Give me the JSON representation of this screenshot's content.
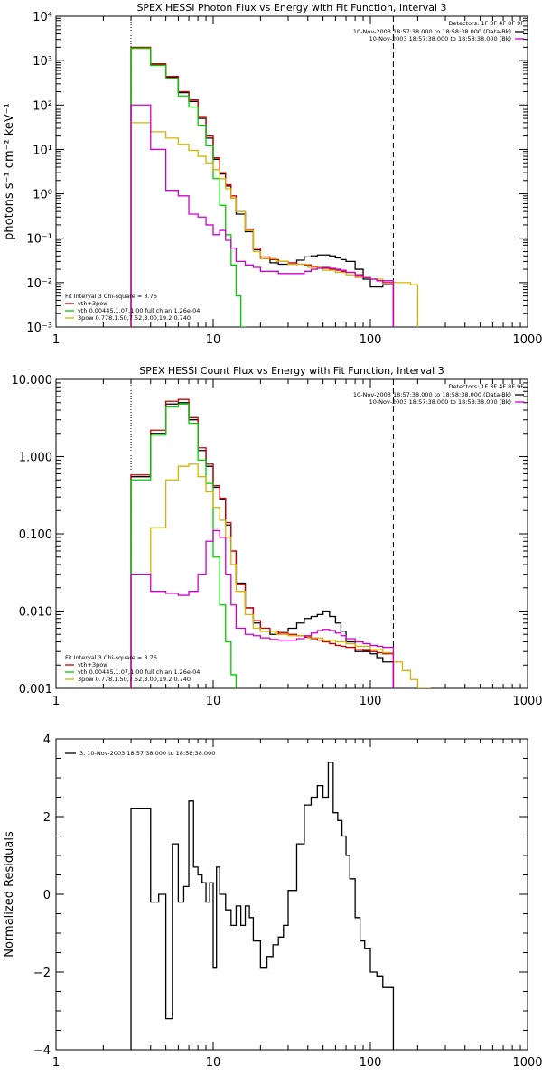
{
  "chart_data": [
    {
      "type": "line",
      "title": "SPEX HESSI Photon Flux vs Energy with Fit Function, Interval 3",
      "xlabel": "",
      "ylabel": "photons s⁻¹ cm⁻² keV⁻¹",
      "xscale": "log",
      "yscale": "log",
      "xlim": [
        1,
        1000
      ],
      "ylim": [
        0.001,
        10000
      ],
      "x_ticks": [
        "1",
        "10",
        "100",
        "1000"
      ],
      "y_ticks": [
        "10⁻³",
        "10⁻²",
        "10⁻¹",
        "10⁰",
        "10¹",
        "10²",
        "10³",
        "10⁴"
      ],
      "grid": false,
      "vlines": [
        {
          "x": 3.0,
          "style": "dotted"
        },
        {
          "x": 140,
          "style": "dashed"
        }
      ],
      "legend_top_right": {
        "header": "Detectors: 1F 3F 4F 8F 9F",
        "entries": [
          {
            "label": "10-Nov-2003 18:57:38.000 to 18:58:38.000 (Data-Bk)",
            "color": "#000000"
          },
          {
            "label": "10-Nov-2003 18:57:38.000 to 18:58:38.000 (Bk)",
            "color": "#cc00cc"
          }
        ]
      },
      "legend_bottom_left": {
        "header": "Fit Interval 3   Chi-square = 3.76",
        "entries": [
          {
            "label": "vth+3pow",
            "color": "#cc0000"
          },
          {
            "label": "vth 0.00445,1.07,1.00  full chian 1.26e-04",
            "color": "#00cc00"
          },
          {
            "label": "3pow 0.778,1.50,7.52,8.00,19.2,0.740",
            "color": "#d4b400"
          }
        ]
      },
      "series": [
        {
          "name": "Data-Bk",
          "color": "#000000",
          "edges": [
            3,
            4,
            5,
            6,
            7,
            8,
            9,
            10,
            11,
            12,
            13,
            14,
            16,
            18,
            20,
            23,
            26,
            30,
            34,
            38,
            42,
            46,
            50,
            55,
            60,
            65,
            70,
            80,
            90,
            100,
            110,
            120,
            140
          ],
          "values": [
            1900,
            800,
            420,
            190,
            120,
            50,
            18,
            6,
            2.8,
            1.5,
            0.8,
            0.35,
            0.14,
            0.055,
            0.035,
            0.028,
            0.026,
            0.026,
            0.032,
            0.038,
            0.04,
            0.042,
            0.042,
            0.04,
            0.036,
            0.033,
            0.03,
            0.02,
            0.012,
            0.008,
            0.008,
            0.009
          ]
        },
        {
          "name": "vth+3pow",
          "color": "#cc0000",
          "edges": [
            3,
            4,
            5,
            6,
            7,
            8,
            9,
            10,
            11,
            12,
            13,
            14,
            16,
            18,
            20,
            23,
            26,
            30,
            34,
            38,
            42,
            46,
            50,
            55,
            60,
            65,
            70,
            80,
            90,
            100,
            110,
            120,
            140
          ],
          "values": [
            2000,
            850,
            440,
            200,
            130,
            55,
            20,
            6.5,
            3.0,
            1.6,
            0.9,
            0.4,
            0.16,
            0.06,
            0.038,
            0.033,
            0.03,
            0.028,
            0.026,
            0.025,
            0.023,
            0.022,
            0.021,
            0.02,
            0.019,
            0.018,
            0.017,
            0.015,
            0.013,
            0.012,
            0.011,
            0.01
          ]
        },
        {
          "name": "vth",
          "color": "#00cc00",
          "edges": [
            3,
            4,
            5,
            6,
            7,
            8,
            9,
            10,
            11,
            12,
            13,
            14,
            15,
            16
          ],
          "values": [
            1900,
            780,
            400,
            160,
            90,
            35,
            12,
            2.2,
            0.55,
            0.12,
            0.025,
            0.005,
            0.001
          ]
        },
        {
          "name": "3pow",
          "color": "#d4b400",
          "edges": [
            3,
            4,
            5,
            6,
            7,
            8,
            9,
            10,
            11,
            12,
            13,
            14,
            16,
            18,
            20,
            25,
            30,
            40,
            50,
            60,
            70,
            80,
            100,
            120,
            140,
            180,
            200,
            280
          ],
          "values": [
            40,
            25,
            18,
            13,
            9.5,
            7,
            5,
            3.5,
            2.2,
            1.3,
            0.8,
            0.4,
            0.15,
            0.05,
            0.035,
            0.03,
            0.026,
            0.022,
            0.019,
            0.017,
            0.015,
            0.013,
            0.012,
            0.011,
            0.01,
            0.009,
            0.0005
          ]
        },
        {
          "name": "Bk",
          "color": "#cc00cc",
          "edges": [
            3,
            4,
            5,
            6,
            7,
            8,
            9,
            10,
            11,
            12,
            13,
            14,
            16,
            18,
            20,
            23,
            26,
            30,
            34,
            38,
            42,
            46,
            50,
            55,
            60,
            65,
            70,
            80,
            90,
            100,
            110,
            120,
            140
          ],
          "values": [
            100,
            10,
            1.2,
            0.9,
            0.35,
            0.3,
            0.2,
            0.12,
            0.15,
            0.09,
            0.06,
            0.03,
            0.025,
            0.022,
            0.018,
            0.018,
            0.016,
            0.016,
            0.016,
            0.018,
            0.02,
            0.021,
            0.022,
            0.021,
            0.02,
            0.019,
            0.017,
            0.014,
            0.013,
            0.012,
            0.011,
            0.011
          ]
        }
      ]
    },
    {
      "type": "line",
      "title": "SPEX HESSI Count Flux vs Energy with Fit Function, Interval 3",
      "xlabel": "",
      "ylabel": "",
      "xscale": "log",
      "yscale": "log",
      "xlim": [
        1,
        1000
      ],
      "ylim": [
        0.001,
        10
      ],
      "x_ticks": [
        "1",
        "10",
        "100",
        "1000"
      ],
      "y_ticks": [
        "0.001",
        "0.010",
        "0.100",
        "1.000",
        "10.000"
      ],
      "grid": false,
      "vlines": [
        {
          "x": 3.0,
          "style": "dotted"
        },
        {
          "x": 140,
          "style": "dashed"
        }
      ],
      "legend_top_right": {
        "header": "Detectors: 1F 3F 4F 8F 9F",
        "entries": [
          {
            "label": "10-Nov-2003 18:57:38.000 to 18:58:38.000 (Data-Bk)",
            "color": "#000000"
          },
          {
            "label": "10-Nov-2003 18:57:38.000 to 18:58:38.000 (Bk)",
            "color": "#cc00cc"
          }
        ]
      },
      "legend_bottom_left": {
        "header": "Fit Interval 3   Chi-square = 3.76",
        "entries": [
          {
            "label": "vth+3pow",
            "color": "#cc0000"
          },
          {
            "label": "vth 0.00445,1.07,1.00  full chian 1.26e-04",
            "color": "#00cc00"
          },
          {
            "label": "3pow 0.778,1.50,7.52,8.00,19.2,0.740",
            "color": "#d4b400"
          }
        ]
      },
      "series": [
        {
          "name": "Data-Bk",
          "color": "#000000",
          "edges": [
            3,
            4,
            5,
            6,
            7,
            8,
            9,
            10,
            11,
            12,
            13,
            14,
            16,
            18,
            20,
            23,
            26,
            30,
            34,
            38,
            42,
            46,
            50,
            55,
            60,
            65,
            70,
            80,
            90,
            100,
            110,
            120,
            140
          ],
          "values": [
            0.55,
            2.0,
            4.8,
            5.0,
            3.0,
            1.2,
            0.75,
            0.4,
            0.28,
            0.13,
            0.06,
            0.023,
            0.011,
            0.007,
            0.0055,
            0.005,
            0.0055,
            0.006,
            0.007,
            0.008,
            0.0085,
            0.009,
            0.01,
            0.0085,
            0.007,
            0.0055,
            0.004,
            0.003,
            0.003,
            0.0028,
            0.0025,
            0.0022
          ]
        },
        {
          "name": "vth+3pow",
          "color": "#cc0000",
          "edges": [
            3,
            4,
            5,
            6,
            7,
            8,
            9,
            10,
            11,
            12,
            13,
            14,
            16,
            18,
            20,
            23,
            26,
            30,
            34,
            38,
            42,
            46,
            50,
            55,
            60,
            65,
            70,
            80,
            90,
            100,
            110,
            120,
            140
          ],
          "values": [
            0.58,
            2.2,
            5.2,
            5.5,
            3.2,
            1.3,
            0.8,
            0.42,
            0.29,
            0.14,
            0.06,
            0.022,
            0.011,
            0.0075,
            0.006,
            0.0055,
            0.0052,
            0.005,
            0.0048,
            0.0046,
            0.0044,
            0.0042,
            0.004,
            0.0038,
            0.0036,
            0.0035,
            0.0034,
            0.0032,
            0.0031,
            0.003,
            0.0029,
            0.0028
          ]
        },
        {
          "name": "vth",
          "color": "#00cc00",
          "edges": [
            3,
            4,
            5,
            6,
            7,
            8,
            9,
            10,
            11,
            12,
            13,
            14,
            15
          ],
          "values": [
            0.5,
            1.9,
            4.4,
            4.8,
            2.7,
            0.9,
            0.45,
            0.05,
            0.012,
            0.004,
            0.0015,
            0.0004
          ]
        },
        {
          "name": "3pow",
          "color": "#d4b400",
          "edges": [
            3,
            4,
            5,
            6,
            7,
            8,
            9,
            10,
            11,
            12,
            13,
            14,
            16,
            18,
            20,
            25,
            30,
            40,
            50,
            60,
            70,
            80,
            100,
            120,
            140,
            160,
            180,
            200,
            240,
            280
          ],
          "values": [
            0.03,
            0.12,
            0.5,
            0.75,
            0.8,
            0.55,
            0.35,
            0.22,
            0.15,
            0.09,
            0.04,
            0.018,
            0.009,
            0.006,
            0.0055,
            0.005,
            0.0048,
            0.0045,
            0.0042,
            0.004,
            0.0038,
            0.0035,
            0.0032,
            0.0029,
            0.0022,
            0.0017,
            0.0013,
            0.001,
            0.0007
          ]
        },
        {
          "name": "Bk",
          "color": "#cc00cc",
          "edges": [
            3,
            4,
            5,
            6,
            7,
            8,
            9,
            10,
            11,
            12,
            13,
            14,
            16,
            18,
            20,
            23,
            26,
            30,
            34,
            38,
            42,
            46,
            50,
            55,
            60,
            65,
            70,
            80,
            90,
            100,
            110,
            120,
            140
          ],
          "values": [
            0.03,
            0.018,
            0.017,
            0.016,
            0.018,
            0.03,
            0.08,
            0.11,
            0.09,
            0.03,
            0.012,
            0.006,
            0.005,
            0.0048,
            0.0045,
            0.0043,
            0.0042,
            0.0042,
            0.0044,
            0.0048,
            0.0052,
            0.0056,
            0.0058,
            0.0056,
            0.0052,
            0.0048,
            0.0044,
            0.004,
            0.0038,
            0.0036,
            0.0035,
            0.0034
          ]
        }
      ]
    },
    {
      "type": "line",
      "title": "",
      "xlabel": "",
      "ylabel": "Normalized Residuals",
      "xscale": "log",
      "yscale": "linear",
      "xlim": [
        1,
        1000
      ],
      "ylim": [
        -4,
        4
      ],
      "x_ticks": [
        "1",
        "10",
        "100",
        "1000"
      ],
      "y_ticks": [
        "−4",
        "−2",
        "0",
        "2",
        "4"
      ],
      "grid": false,
      "legend": {
        "entries": [
          {
            "label": "3, 10-Nov-2003 18:57:38.000 to 18:58:38.000",
            "color": "#000000"
          }
        ]
      },
      "series": [
        {
          "name": "",
          "color": "#000000",
          "edges": [
            3,
            4,
            4.5,
            5,
            5.5,
            6,
            6.5,
            7,
            7.5,
            8,
            8.5,
            9,
            9.5,
            10,
            10.5,
            11,
            12,
            13,
            14,
            15,
            16,
            17,
            18,
            20,
            22,
            24,
            26,
            28,
            30,
            34,
            38,
            42,
            46,
            50,
            54,
            58,
            62,
            66,
            70,
            74,
            80,
            86,
            92,
            100,
            110,
            120,
            140
          ],
          "values": [
            2.2,
            -0.2,
            0.0,
            -3.2,
            1.3,
            -0.2,
            0.2,
            2.4,
            0.7,
            0.5,
            0.3,
            -0.2,
            0.3,
            -1.9,
            0.7,
            0.0,
            -0.4,
            -0.8,
            -0.3,
            -0.8,
            -0.3,
            -0.6,
            -1.2,
            -1.9,
            -1.6,
            -1.3,
            -1.1,
            -0.8,
            0.1,
            1.3,
            2.3,
            2.5,
            2.8,
            2.5,
            3.4,
            2.1,
            1.9,
            1.5,
            1.0,
            0.4,
            -0.6,
            -1.2,
            -1.4,
            -2.0,
            -2.1,
            -2.4
          ]
        }
      ]
    }
  ]
}
